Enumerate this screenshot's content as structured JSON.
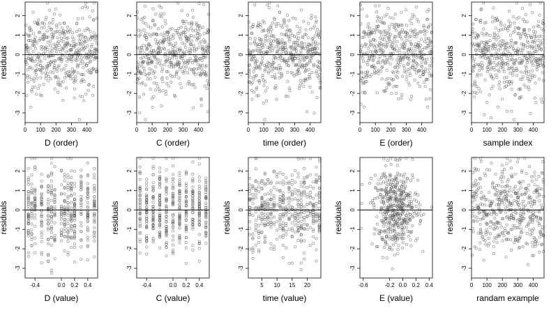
{
  "figure": {
    "background": "#ffffff",
    "point_color": "#555555",
    "ink": "#000000",
    "point_seed_note": "",
    "panels": [
      {
        "xlabel": "D (order)",
        "ylabel": "residuals",
        "xticks": [
          "0",
          "100",
          "200",
          "300",
          "400"
        ]
      },
      {
        "xlabel": "C (order)",
        "ylabel": "residuals",
        "xticks": [
          "0",
          "100",
          "200",
          "300",
          "400"
        ]
      },
      {
        "xlabel": "time (order)",
        "ylabel": "residuals",
        "xticks": [
          "0",
          "100",
          "200",
          "300",
          "400"
        ]
      },
      {
        "xlabel": "E (order)",
        "ylabel": "residuals",
        "xticks": [
          "0",
          "100",
          "200",
          "300",
          "400"
        ]
      },
      {
        "xlabel": "sample index",
        "ylabel": "residuals",
        "xticks": [
          "0",
          "100",
          "200",
          "300",
          "400"
        ]
      },
      {
        "xlabel": "D (value)",
        "ylabel": "residuals",
        "xticks": [
          "-0.4",
          "0.0",
          "0.2",
          "0.4"
        ]
      },
      {
        "xlabel": "C (value)",
        "ylabel": "residuals",
        "xticks": [
          "-0.4",
          "0.0",
          "0.2",
          "0.4"
        ]
      },
      {
        "xlabel": "time (value)",
        "ylabel": "residuals",
        "xticks": [
          "5",
          "10",
          "15",
          "20"
        ]
      },
      {
        "xlabel": "E (value)",
        "ylabel": "residuals",
        "xticks": [
          "-0.6",
          "-0.2",
          "0.0",
          "0.2",
          "0.4"
        ]
      },
      {
        "xlabel": "randam example",
        "ylabel": "residuals",
        "xticks": [
          "0",
          "100",
          "200",
          "300",
          "400"
        ]
      }
    ],
    "yticks": [
      "-3",
      "-2",
      "-1",
      "0",
      "1",
      "2"
    ]
  },
  "chart_data": [
    {
      "type": "scatter",
      "xlabel": "D (order)",
      "ylabel": "residuals",
      "xlim": [
        0,
        470
      ],
      "ylim": [
        -3.5,
        2.7
      ],
      "reference_line_y": 0,
      "n_points": 470,
      "x_distribution": "order",
      "x_range": [
        1,
        470
      ]
    },
    {
      "type": "scatter",
      "xlabel": "C (order)",
      "ylabel": "residuals",
      "xlim": [
        0,
        470
      ],
      "ylim": [
        -3.5,
        2.7
      ],
      "reference_line_y": 0,
      "n_points": 470,
      "x_distribution": "order",
      "x_range": [
        1,
        470
      ]
    },
    {
      "type": "scatter",
      "xlabel": "time (order)",
      "ylabel": "residuals",
      "xlim": [
        0,
        470
      ],
      "ylim": [
        -3.5,
        2.7
      ],
      "reference_line_y": 0,
      "n_points": 470,
      "x_distribution": "order",
      "x_range": [
        1,
        470
      ]
    },
    {
      "type": "scatter",
      "xlabel": "E (order)",
      "ylabel": "residuals",
      "xlim": [
        0,
        470
      ],
      "ylim": [
        -3.5,
        2.7
      ],
      "reference_line_y": 0,
      "n_points": 470,
      "x_distribution": "order",
      "x_range": [
        1,
        470
      ]
    },
    {
      "type": "scatter",
      "xlabel": "sample index",
      "ylabel": "residuals",
      "xlim": [
        0,
        470
      ],
      "ylim": [
        -3.5,
        2.7
      ],
      "reference_line_y": 0,
      "n_points": 470,
      "x_distribution": "order",
      "x_range": [
        1,
        470
      ]
    },
    {
      "type": "scatter",
      "xlabel": "D (value)",
      "ylabel": "residuals",
      "xlim": [
        -0.55,
        0.55
      ],
      "ylim": [
        -3.5,
        2.7
      ],
      "reference_line_y": 0,
      "n_points": 470,
      "x_distribution": "discrete",
      "x_values": [
        -0.5,
        -0.45,
        -0.4,
        -0.3,
        -0.2,
        -0.15,
        -0.1,
        0.0,
        0.05,
        0.1,
        0.15,
        0.2,
        0.3,
        0.4,
        0.5
      ]
    },
    {
      "type": "scatter",
      "xlabel": "C (value)",
      "ylabel": "residuals",
      "xlim": [
        -0.55,
        0.55
      ],
      "ylim": [
        -3.5,
        2.7
      ],
      "reference_line_y": 0,
      "n_points": 470,
      "x_distribution": "discrete",
      "x_values": [
        -0.5,
        -0.4,
        -0.3,
        -0.2,
        -0.1,
        0.0,
        0.1,
        0.2,
        0.3,
        0.4,
        0.5
      ]
    },
    {
      "type": "scatter",
      "xlabel": "time (value)",
      "ylabel": "residuals",
      "xlim": [
        0.5,
        24.5
      ],
      "ylim": [
        -3.5,
        2.7
      ],
      "reference_line_y": 0,
      "n_points": 470,
      "x_distribution": "discrete",
      "x_values": [
        1,
        2,
        3,
        4,
        5,
        6,
        7,
        8,
        9,
        10,
        11,
        12,
        13,
        14,
        15,
        16,
        17,
        18,
        19,
        20,
        21,
        22,
        23,
        24
      ]
    },
    {
      "type": "scatter",
      "xlabel": "E (value)",
      "ylabel": "residuals",
      "xlim": [
        -0.65,
        0.45
      ],
      "ylim": [
        -3.5,
        2.7
      ],
      "reference_line_y": 0,
      "n_points": 470,
      "x_distribution": "continuous",
      "x_range": [
        -0.6,
        0.4
      ]
    },
    {
      "type": "scatter",
      "xlabel": "randam example",
      "ylabel": "residuals",
      "xlim": [
        0,
        470
      ],
      "ylim": [
        -3.5,
        2.7
      ],
      "reference_line_y": 0,
      "n_points": 470,
      "x_distribution": "uniform",
      "x_range": [
        1,
        470
      ]
    }
  ]
}
